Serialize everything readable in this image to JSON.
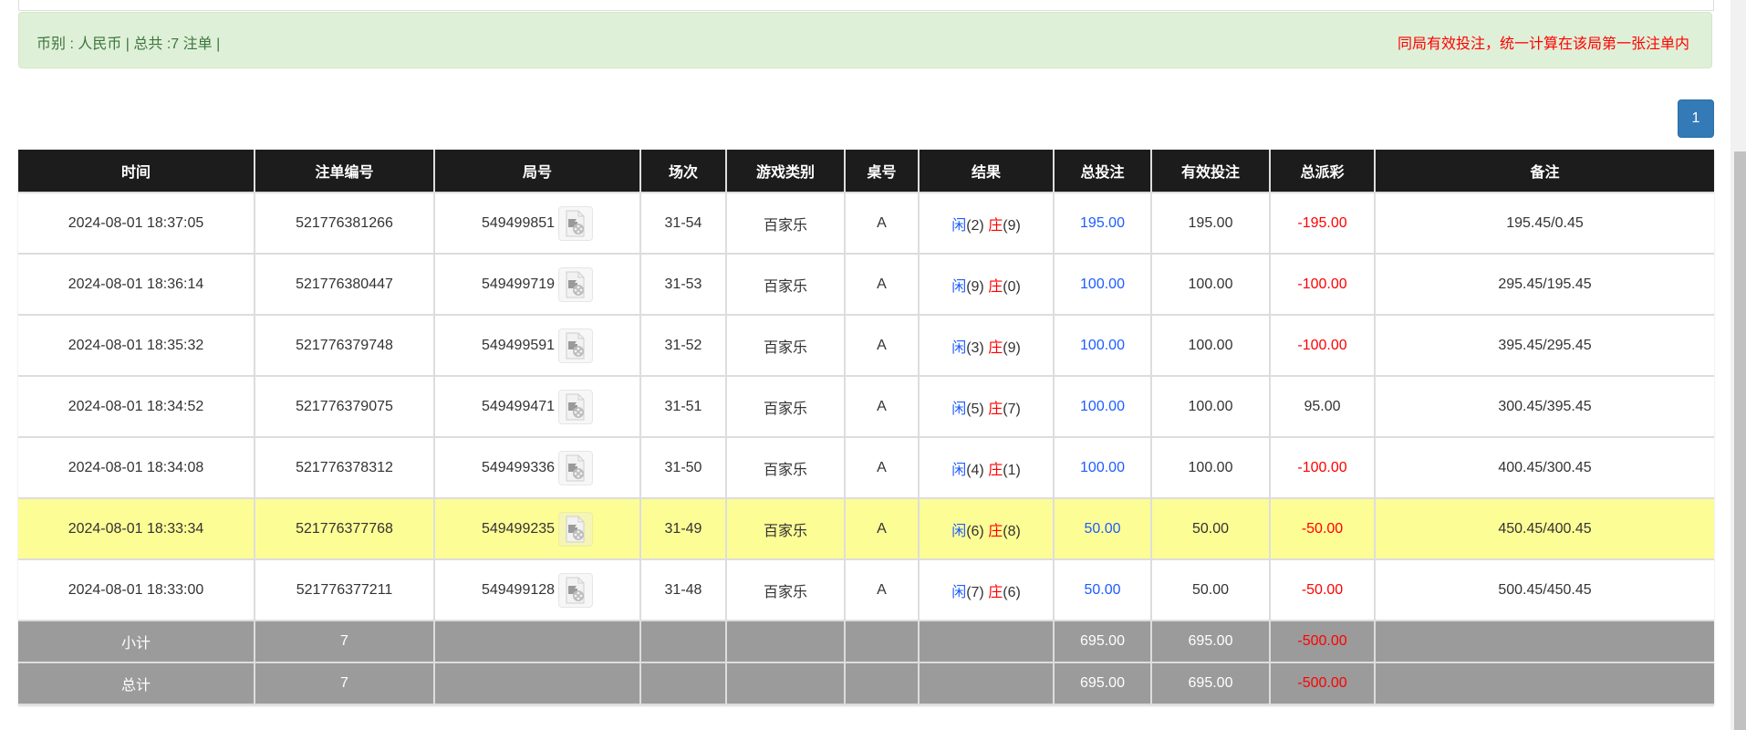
{
  "summary_bar": {
    "left_text": "币别 : 人民币 | 总共 :7 注单 |",
    "right_text": "同局有效投注，统一计算在该局第一张注单内"
  },
  "pagination": {
    "current_page": "1"
  },
  "colors": {
    "header_bg": "#1c1c1c",
    "highlight_row": "#fdfd96",
    "summary_bg": "#9b9b9b",
    "alert_bg": "#dff0d8",
    "player": "#1e5cff",
    "banker": "#ff0000"
  },
  "table": {
    "headers": [
      "时间",
      "注单编号",
      "局号",
      "场次",
      "游戏类别",
      "桌号",
      "结果",
      "总投注",
      "有效投注",
      "总派彩",
      "备注"
    ],
    "result_labels": {
      "player": "闲",
      "banker": "庄"
    },
    "rows": [
      {
        "time": "2024-08-01 18:37:05",
        "bet_id": "521776381266",
        "round": "549499851",
        "session": "31-54",
        "game": "百家乐",
        "table": "A",
        "player": "(2)",
        "banker": "(9)",
        "total_bet": "195.00",
        "valid_bet": "195.00",
        "payout": "-195.00",
        "note": "195.45/0.45",
        "highlight": false
      },
      {
        "time": "2024-08-01 18:36:14",
        "bet_id": "521776380447",
        "round": "549499719",
        "session": "31-53",
        "game": "百家乐",
        "table": "A",
        "player": "(9)",
        "banker": "(0)",
        "total_bet": "100.00",
        "valid_bet": "100.00",
        "payout": "-100.00",
        "note": "295.45/195.45",
        "highlight": false
      },
      {
        "time": "2024-08-01 18:35:32",
        "bet_id": "521776379748",
        "round": "549499591",
        "session": "31-52",
        "game": "百家乐",
        "table": "A",
        "player": "(3)",
        "banker": "(9)",
        "total_bet": "100.00",
        "valid_bet": "100.00",
        "payout": "-100.00",
        "note": "395.45/295.45",
        "highlight": false
      },
      {
        "time": "2024-08-01 18:34:52",
        "bet_id": "521776379075",
        "round": "549499471",
        "session": "31-51",
        "game": "百家乐",
        "table": "A",
        "player": "(5)",
        "banker": "(7)",
        "total_bet": "100.00",
        "valid_bet": "100.00",
        "payout": "95.00",
        "note": "300.45/395.45",
        "highlight": false
      },
      {
        "time": "2024-08-01 18:34:08",
        "bet_id": "521776378312",
        "round": "549499336",
        "session": "31-50",
        "game": "百家乐",
        "table": "A",
        "player": "(4)",
        "banker": "(1)",
        "total_bet": "100.00",
        "valid_bet": "100.00",
        "payout": "-100.00",
        "note": "400.45/300.45",
        "highlight": false
      },
      {
        "time": "2024-08-01 18:33:34",
        "bet_id": "521776377768",
        "round": "549499235",
        "session": "31-49",
        "game": "百家乐",
        "table": "A",
        "player": "(6)",
        "banker": "(8)",
        "total_bet": "50.00",
        "valid_bet": "50.00",
        "payout": "-50.00",
        "note": "450.45/400.45",
        "highlight": true
      },
      {
        "time": "2024-08-01 18:33:00",
        "bet_id": "521776377211",
        "round": "549499128",
        "session": "31-48",
        "game": "百家乐",
        "table": "A",
        "player": "(7)",
        "banker": "(6)",
        "total_bet": "50.00",
        "valid_bet": "50.00",
        "payout": "-50.00",
        "note": "500.45/450.45",
        "highlight": false
      }
    ],
    "subtotal": {
      "label": "小计",
      "count": "7",
      "total_bet": "695.00",
      "valid_bet": "695.00",
      "payout": "-500.00"
    },
    "total": {
      "label": "总计",
      "count": "7",
      "total_bet": "695.00",
      "valid_bet": "695.00",
      "payout": "-500.00"
    }
  }
}
